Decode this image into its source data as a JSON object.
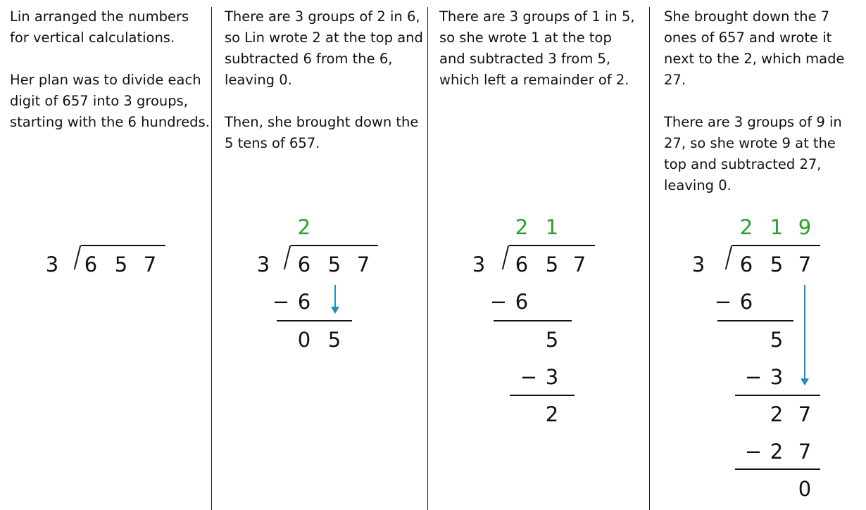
{
  "panels": [
    {
      "paragraphs": [
        "Lin arranged the numbers for vertical calculations.",
        "Her plan was to divide each digit of 657 into 3 groups, starting with the 6 hundreds."
      ],
      "divisor": "3",
      "rows": [
        {
          "digits": "   ",
          "minus": false
        },
        {
          "digits": "657",
          "minus": false
        }
      ],
      "arrow": false
    },
    {
      "paragraphs": [
        "There are 3 groups of 2 in 6, so Lin wrote 2 at the top and subtracted 6 from the 6, leaving 0.",
        "Then, she brought down the 5 tens of 657."
      ],
      "divisor": "3",
      "rows": [
        {
          "digits": "2  ",
          "minus": false
        },
        {
          "digits": "657",
          "minus": false
        },
        {
          "digits": "6  ",
          "minus": true
        },
        {
          "digits": "05 ",
          "minus": false
        }
      ],
      "arrow": true
    },
    {
      "paragraphs": [
        "There are 3 groups of 1 in 5, so she wrote 1 at the top and subtracted 3 from 5, which left a remainder of 2."
      ],
      "divisor": "3",
      "rows": [
        {
          "digits": "21 ",
          "minus": false
        },
        {
          "digits": "657",
          "minus": false
        },
        {
          "digits": "6  ",
          "minus": true
        },
        {
          "digits": " 5 ",
          "minus": false
        },
        {
          "digits": " 3 ",
          "minus": true
        },
        {
          "digits": " 2 ",
          "minus": false
        }
      ],
      "arrow": false
    },
    {
      "paragraphs": [
        "She brought down the 7 ones of 657 and wrote it next to the 2, which made 27.",
        "There are 3 groups of 9 in 27, so she wrote 9 at the top and subtracted 27, leaving 0."
      ],
      "divisor": "3",
      "rows": [
        {
          "digits": "219",
          "minus": false
        },
        {
          "digits": "657",
          "minus": false
        },
        {
          "digits": "6  ",
          "minus": true
        },
        {
          "digits": " 5 ",
          "minus": false
        },
        {
          "digits": " 3 ",
          "minus": true
        },
        {
          "digits": " 27",
          "minus": false
        },
        {
          "digits": " 27",
          "minus": true
        },
        {
          "digits": "  0",
          "minus": false
        }
      ],
      "arrow": true
    }
  ],
  "minus_sign": "−",
  "colors": {
    "quotient": "#2ca02c",
    "arrow": "#1a8fc0",
    "text": "#111111"
  }
}
